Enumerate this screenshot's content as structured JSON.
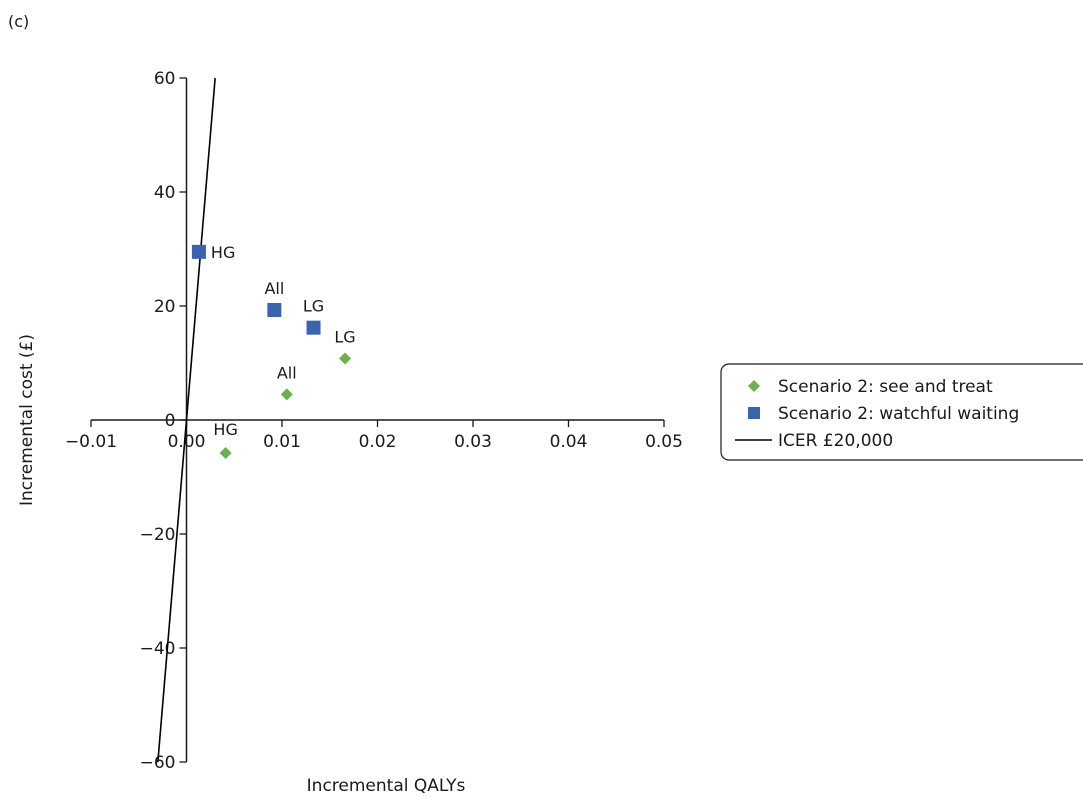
{
  "panel_label": "(c)",
  "chart_data": {
    "type": "scatter",
    "title": "",
    "xlabel": "Incremental QALYs",
    "ylabel": "Incremental cost (£)",
    "xlim": [
      -0.01,
      0.05
    ],
    "ylim": [
      -60,
      60
    ],
    "x_ticks": [
      -0.01,
      0.0,
      0.01,
      0.02,
      0.03,
      0.04,
      0.05
    ],
    "x_tick_labels": [
      "−0.01",
      "0.00",
      "0.01",
      "0.02",
      "0.03",
      "0.04",
      "0.05"
    ],
    "y_ticks": [
      -60,
      -40,
      -20,
      0,
      20,
      40,
      60
    ],
    "y_tick_labels": [
      "−60",
      "−40",
      "−20",
      "0",
      "20",
      "40",
      "60"
    ],
    "grid": false,
    "legend_position": "right",
    "series": [
      {
        "name": "Scenario 2: see and treat",
        "marker": "diamond",
        "color": "#6ab04c",
        "points": [
          {
            "label": "HG",
            "x": 0.0041,
            "y": -5.8
          },
          {
            "label": "All",
            "x": 0.0105,
            "y": 4.5
          },
          {
            "label": "LG",
            "x": 0.0166,
            "y": 10.8
          }
        ]
      },
      {
        "name": "Scenario 2: watchful waiting",
        "marker": "square",
        "color": "#3a64ae",
        "points": [
          {
            "label": "HG",
            "x": 0.0013,
            "y": 29.5
          },
          {
            "label": "All",
            "x": 0.0092,
            "y": 19.3
          },
          {
            "label": "LG",
            "x": 0.0133,
            "y": 16.2
          }
        ]
      }
    ],
    "reference_line": {
      "name": "ICER £20,000",
      "color": "#000000",
      "slope": 20000,
      "x_range": [
        -0.003,
        0.003
      ]
    }
  }
}
